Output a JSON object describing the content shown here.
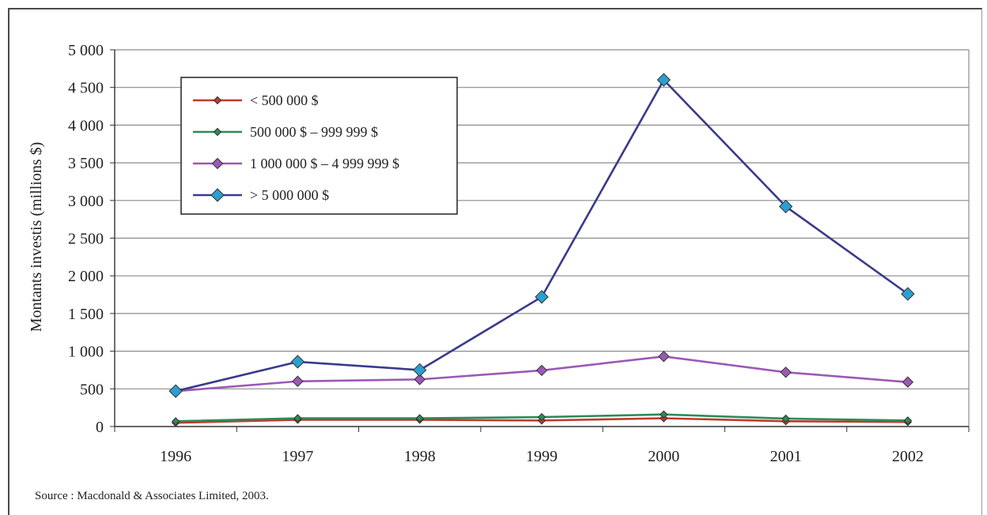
{
  "chart_data": {
    "type": "line",
    "title": "",
    "xlabel": "",
    "ylabel": "Montants investis (millions $)",
    "categories": [
      "1996",
      "1997",
      "1998",
      "1999",
      "2000",
      "2001",
      "2002"
    ],
    "ylim": [
      0,
      5000
    ],
    "yticks": [
      0,
      500,
      1000,
      1500,
      2000,
      2500,
      3000,
      3500,
      4000,
      4500,
      5000
    ],
    "ytick_labels": [
      "0",
      "500",
      "1 000",
      "1 500",
      "2 000",
      "2 500",
      "3 000",
      "3 500",
      "4 000",
      "4 500",
      "5 000"
    ],
    "grid": true,
    "legend_position": "top-left",
    "series": [
      {
        "name": "< 500 000 $",
        "color": "#c0392b",
        "marker": "small-diamond",
        "values": [
          50,
          90,
          90,
          80,
          110,
          70,
          60
        ]
      },
      {
        "name": "500 000 $ – 999 999 $",
        "color": "#2e8b57",
        "marker": "small-diamond",
        "values": [
          70,
          110,
          110,
          125,
          160,
          105,
          80
        ]
      },
      {
        "name": "1 000 000 $ – 4 999 999 $",
        "color": "#9b59b6",
        "marker": "diamond",
        "values": [
          470,
          600,
          625,
          745,
          930,
          720,
          590
        ]
      },
      {
        "name": "> 5 000 000 $",
        "color": "#3a3a8c",
        "marker_color": "#2a9fd0",
        "marker": "large-diamond",
        "values": [
          470,
          860,
          750,
          1720,
          4600,
          2920,
          1760
        ]
      }
    ],
    "source_note": "Source : Macdonald & Associates Limited, 2003."
  }
}
